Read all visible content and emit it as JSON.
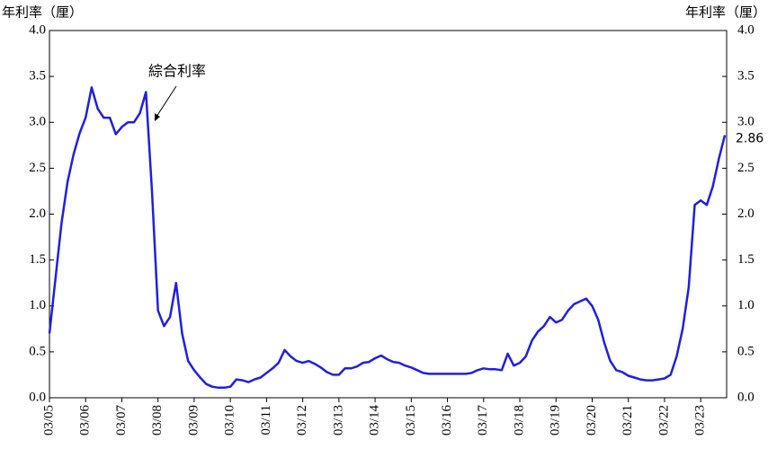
{
  "chart_data": {
    "type": "line",
    "y_label": "年利率（厘）",
    "y2_label": "年利率（厘）",
    "annotation": "綜合利率",
    "categories": [
      "03/05",
      null,
      null,
      null,
      null,
      null,
      "03/06",
      null,
      null,
      null,
      null,
      null,
      "03/07",
      null,
      null,
      null,
      null,
      null,
      "03/08",
      null,
      null,
      null,
      null,
      null,
      "03/09",
      null,
      null,
      null,
      null,
      null,
      "03/10",
      null,
      null,
      null,
      null,
      null,
      "03/11",
      null,
      null,
      null,
      null,
      null,
      "03/12",
      null,
      null,
      null,
      null,
      null,
      "03/13",
      null,
      null,
      null,
      null,
      null,
      "03/14",
      null,
      null,
      null,
      null,
      null,
      "03/15",
      null,
      null,
      null,
      null,
      null,
      "03/16",
      null,
      null,
      null,
      null,
      null,
      "03/17",
      null,
      null,
      null,
      null,
      null,
      "03/18",
      null,
      null,
      null,
      null,
      null,
      "03/19",
      null,
      null,
      null,
      null,
      null,
      "03/20",
      null,
      null,
      null,
      null,
      null,
      "03/21",
      null,
      null,
      null,
      null,
      null,
      "03/22",
      null,
      null,
      null,
      null,
      null,
      "03/23",
      null,
      null,
      null,
      null
    ],
    "series": [
      {
        "name": "綜合利率",
        "color": "#1f1fe0",
        "values": [
          0.7,
          1.3,
          1.9,
          2.35,
          2.65,
          2.88,
          3.05,
          3.38,
          3.15,
          3.05,
          3.05,
          2.87,
          2.95,
          3.0,
          3.0,
          3.1,
          3.33,
          2.25,
          0.95,
          0.78,
          0.88,
          1.25,
          0.7,
          0.4,
          0.3,
          0.22,
          0.15,
          0.12,
          0.11,
          0.11,
          0.12,
          0.2,
          0.19,
          0.17,
          0.2,
          0.22,
          0.27,
          0.32,
          0.38,
          0.52,
          0.45,
          0.4,
          0.38,
          0.4,
          0.37,
          0.33,
          0.28,
          0.25,
          0.25,
          0.32,
          0.32,
          0.34,
          0.38,
          0.39,
          0.43,
          0.46,
          0.42,
          0.39,
          0.38,
          0.35,
          0.33,
          0.3,
          0.27,
          0.26,
          0.26,
          0.26,
          0.26,
          0.26,
          0.26,
          0.26,
          0.27,
          0.3,
          0.32,
          0.31,
          0.31,
          0.3,
          0.48,
          0.35,
          0.38,
          0.45,
          0.62,
          0.72,
          0.78,
          0.88,
          0.82,
          0.85,
          0.95,
          1.02,
          1.05,
          1.08,
          1.0,
          0.85,
          0.6,
          0.4,
          0.3,
          0.28,
          0.24,
          0.22,
          0.2,
          0.19,
          0.19,
          0.2,
          0.21,
          0.25,
          0.45,
          0.75,
          1.2,
          2.1,
          2.15,
          2.1,
          2.3,
          2.6,
          2.86
        ]
      }
    ],
    "ylim": [
      0,
      4
    ],
    "yticks": [
      {
        "value": 0,
        "label": "0.0"
      },
      {
        "value": 0.5,
        "label": "0.5"
      },
      {
        "value": 1,
        "label": "1.0"
      },
      {
        "value": 1.5,
        "label": "1.5"
      },
      {
        "value": 2,
        "label": "2.0"
      },
      {
        "value": 2.5,
        "label": "2.5"
      },
      {
        "value": 3,
        "label": "3.0"
      },
      {
        "value": 3.5,
        "label": "3.5"
      },
      {
        "value": 4,
        "label": "4.0"
      }
    ],
    "y2lim": [
      0,
      4
    ],
    "y2ticks": [
      {
        "value": 0,
        "label": "0.0"
      },
      {
        "value": 0.5,
        "label": "0.5"
      },
      {
        "value": 1,
        "label": "1.0"
      },
      {
        "value": 1.5,
        "label": "1.5"
      },
      {
        "value": 2,
        "label": "2.0"
      },
      {
        "value": 2.5,
        "label": "2.5"
      },
      {
        "value": 3,
        "label": "3.0"
      },
      {
        "value": 3.5,
        "label": "3.5"
      },
      {
        "value": 4,
        "label": "4.0"
      }
    ]
  }
}
